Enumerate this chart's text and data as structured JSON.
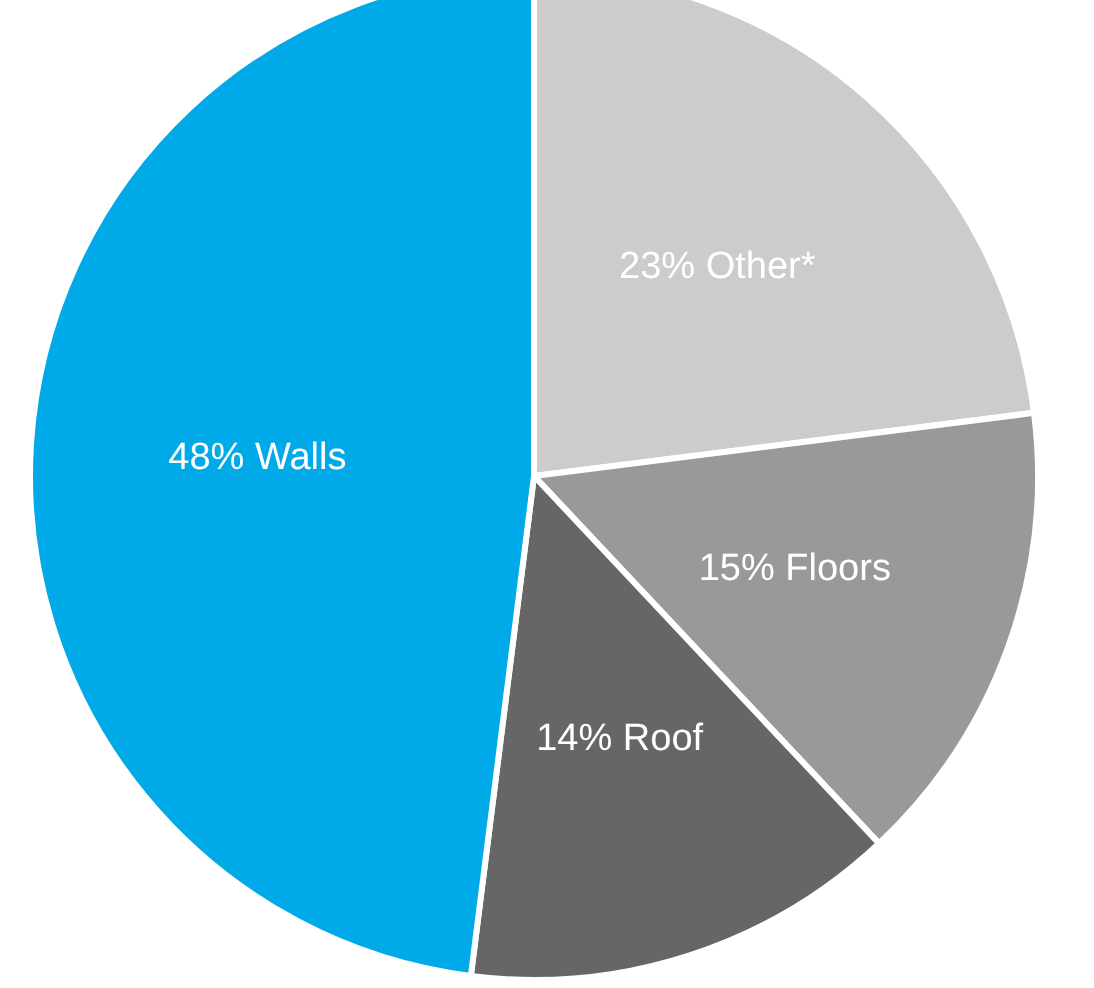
{
  "chart_data": {
    "type": "pie",
    "categories": [
      "Other*",
      "Floors",
      "Roof",
      "Walls"
    ],
    "values": [
      23,
      15,
      14,
      48
    ],
    "colors": [
      "#cccccc",
      "#999999",
      "#666666",
      "#00a9e8"
    ],
    "value_labels": [
      "23%",
      "15%",
      "14%",
      "48%"
    ]
  }
}
